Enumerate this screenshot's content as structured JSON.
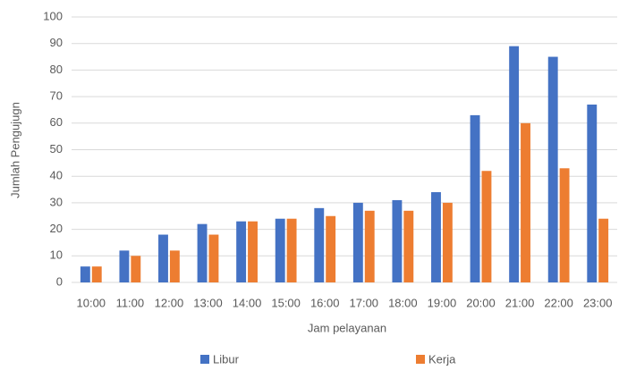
{
  "chart_data": {
    "type": "bar",
    "categories": [
      "10:00",
      "11:00",
      "12:00",
      "13:00",
      "14:00",
      "15:00",
      "16:00",
      "17:00",
      "18:00",
      "19:00",
      "20:00",
      "21:00",
      "22:00",
      "23:00"
    ],
    "series": [
      {
        "name": "Libur",
        "color": "#4472c4",
        "values": [
          6,
          12,
          18,
          22,
          23,
          24,
          28,
          30,
          31,
          34,
          63,
          89,
          85,
          67
        ]
      },
      {
        "name": "Kerja",
        "color": "#ed7d31",
        "values": [
          6,
          10,
          12,
          18,
          23,
          24,
          25,
          27,
          27,
          30,
          42,
          60,
          43,
          24
        ]
      }
    ],
    "x_label": "Jam pelayanan",
    "y_label": "Jumlah Pengujugn",
    "ylim": [
      0,
      100
    ],
    "yticks": [
      0,
      10,
      20,
      30,
      40,
      50,
      60,
      70,
      80,
      90,
      100
    ],
    "grid": true,
    "legend": "bottom"
  }
}
